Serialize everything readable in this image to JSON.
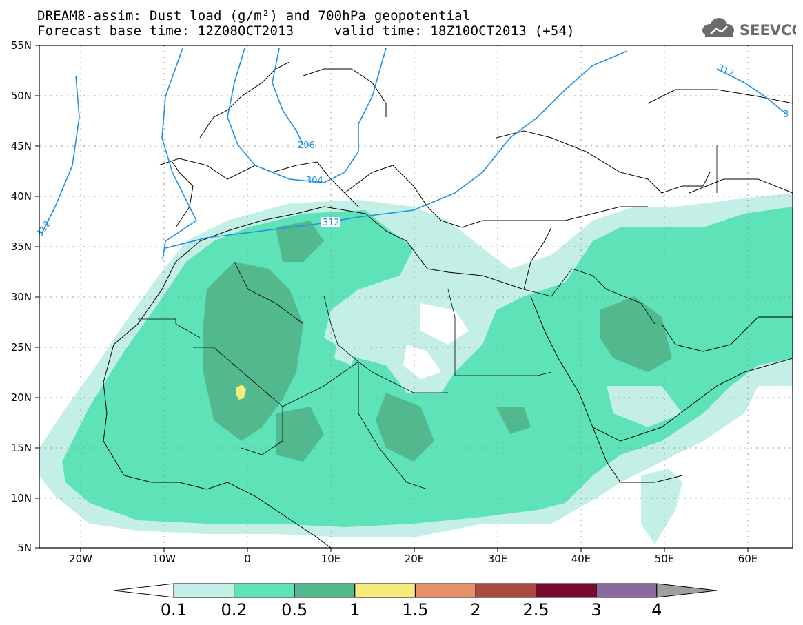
{
  "header": {
    "line1": "DREAM8-assim: Dust load (g/m²) and 700hPa geopotential",
    "line2": "Forecast base time: 12Z08OCT2013     valid time: 18Z10OCT2013 (+54)"
  },
  "logo": {
    "text": "SEEVCCC",
    "icon": "cloud-icon"
  },
  "axes": {
    "lon_labels": [
      "20W",
      "10W",
      "0",
      "10E",
      "20E",
      "30E",
      "40E",
      "50E",
      "60E"
    ],
    "lat_labels": [
      "55N",
      "50N",
      "45N",
      "40N",
      "35N",
      "30N",
      "25N",
      "20N",
      "15N",
      "10N",
      "5N"
    ]
  },
  "contour_labels": [
    "312",
    "296",
    "304",
    "312",
    "312",
    "3"
  ],
  "colorbar": {
    "labels": [
      "0.1",
      "0.2",
      "0.5",
      "1",
      "1.5",
      "2",
      "2.5",
      "3",
      "4"
    ],
    "colors": [
      "#ffffff",
      "#c4efe6",
      "#5ee2b8",
      "#52b88e",
      "#f6ec7c",
      "#e89068",
      "#a84a40",
      "#7a0a2c",
      "#8a6a9e",
      "#a0a0a0"
    ]
  },
  "map_colors": {
    "land": "#ffffff",
    "dust_light": "#c4efe6",
    "dust_mid": "#5ee2b8",
    "dust_dark": "#52b88e",
    "dust_yellow": "#f6ec7c",
    "geopotential": "#1e90e6",
    "coast": "#000000",
    "grid": "#9a9a9a"
  }
}
